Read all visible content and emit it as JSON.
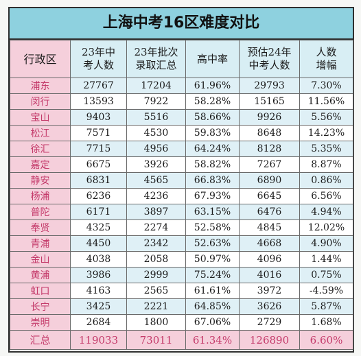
{
  "title": "上海中考16区难度对比",
  "headers": {
    "district": "行政区",
    "c1": "23年中\n考人数",
    "c2": "23年批次\n录取汇总",
    "c3": "高中率",
    "c4": "预估24年\n中考人数",
    "c5": "人数\n增幅"
  },
  "rows": [
    {
      "d": "浦东",
      "c1": "27767",
      "c2": "17204",
      "c3": "61.96%",
      "c4": "29793",
      "c5": "7.30%"
    },
    {
      "d": "闵行",
      "c1": "13593",
      "c2": "7922",
      "c3": "58.28%",
      "c4": "15165",
      "c5": "11.56%"
    },
    {
      "d": "宝山",
      "c1": "9403",
      "c2": "5516",
      "c3": "58.66%",
      "c4": "9926",
      "c5": "5.56%"
    },
    {
      "d": "松江",
      "c1": "7571",
      "c2": "4530",
      "c3": "59.83%",
      "c4": "8648",
      "c5": "14.23%"
    },
    {
      "d": "徐汇",
      "c1": "7715",
      "c2": "4956",
      "c3": "64.24%",
      "c4": "8128",
      "c5": "5.35%"
    },
    {
      "d": "嘉定",
      "c1": "6675",
      "c2": "3926",
      "c3": "58.82%",
      "c4": "7267",
      "c5": "8.87%"
    },
    {
      "d": "静安",
      "c1": "6831",
      "c2": "4565",
      "c3": "66.83%",
      "c4": "6890",
      "c5": "0.86%"
    },
    {
      "d": "杨浦",
      "c1": "6236",
      "c2": "4236",
      "c3": "67.93%",
      "c4": "6645",
      "c5": "6.56%"
    },
    {
      "d": "普陀",
      "c1": "6171",
      "c2": "3897",
      "c3": "63.15%",
      "c4": "6476",
      "c5": "4.94%"
    },
    {
      "d": "奉贤",
      "c1": "4325",
      "c2": "2274",
      "c3": "52.58%",
      "c4": "4845",
      "c5": "12.02%"
    },
    {
      "d": "青浦",
      "c1": "4450",
      "c2": "2342",
      "c3": "52.63%",
      "c4": "4668",
      "c5": "4.90%"
    },
    {
      "d": "金山",
      "c1": "4038",
      "c2": "2058",
      "c3": "50.97%",
      "c4": "4096",
      "c5": "1.44%"
    },
    {
      "d": "黄浦",
      "c1": "3986",
      "c2": "2999",
      "c3": "75.24%",
      "c4": "4016",
      "c5": "0.75%"
    },
    {
      "d": "虹口",
      "c1": "4163",
      "c2": "2565",
      "c3": "61.61%",
      "c4": "3972",
      "c5": "-4.59%"
    },
    {
      "d": "长宁",
      "c1": "3425",
      "c2": "2221",
      "c3": "64.85%",
      "c4": "3626",
      "c5": "5.87%"
    },
    {
      "d": "崇明",
      "c1": "2684",
      "c2": "1800",
      "c3": "67.06%",
      "c4": "2729",
      "c5": "1.68%"
    }
  ],
  "total": {
    "d": "汇总",
    "c1": "119033",
    "c2": "73011",
    "c3": "61.34%",
    "c4": "126890",
    "c5": "6.60%"
  }
}
